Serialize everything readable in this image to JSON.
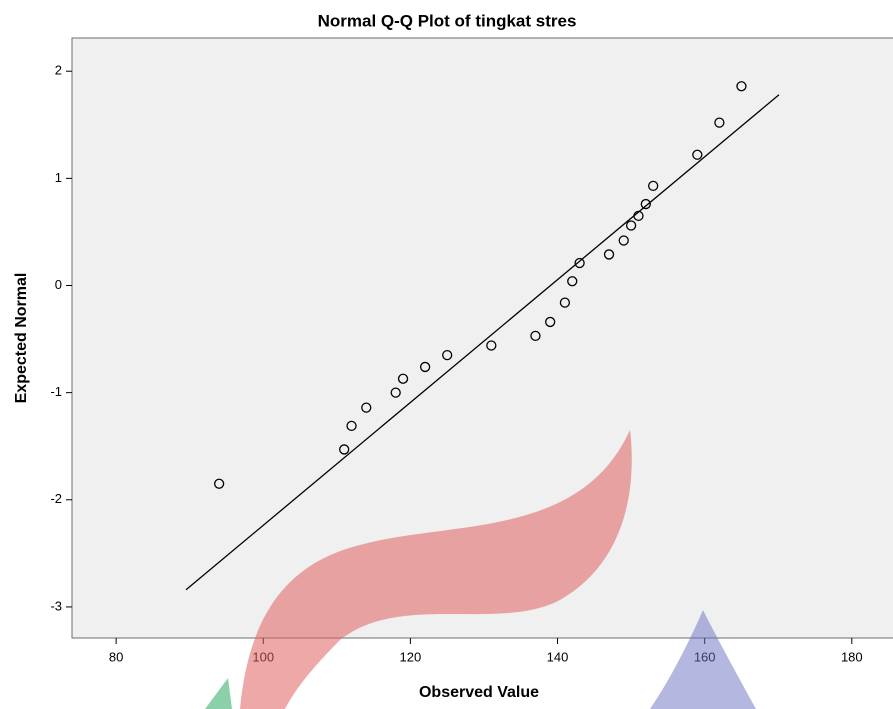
{
  "chart_data": {
    "type": "scatter",
    "title": "Normal Q-Q Plot of tingkat stres",
    "x_label": "Observed Value",
    "y_label": "Expected Normal",
    "x": [
      94,
      111,
      112,
      114,
      118,
      119,
      122,
      125,
      131,
      137,
      139,
      141,
      142,
      143,
      147,
      149,
      150,
      151,
      152,
      153,
      159,
      162,
      165
    ],
    "values": [
      -1.85,
      -1.53,
      -1.31,
      -1.14,
      -1.0,
      -0.87,
      -0.76,
      -0.65,
      -0.56,
      -0.47,
      -0.34,
      -0.16,
      0.04,
      0.21,
      0.29,
      0.42,
      0.56,
      0.65,
      0.76,
      0.93,
      1.22,
      1.52,
      1.86
    ],
    "reference_line": {
      "x": [
        89.5,
        170.1
      ],
      "y": [
        -2.84,
        1.78
      ]
    },
    "color": "#000000",
    "xlim": [
      74,
      185.6
    ],
    "ylim": [
      -3.29,
      2.31
    ],
    "xticks": [
      80,
      100,
      120,
      140,
      160,
      180
    ],
    "yticks": [
      2,
      1,
      0,
      -1,
      -2,
      -3
    ],
    "grid": false
  }
}
